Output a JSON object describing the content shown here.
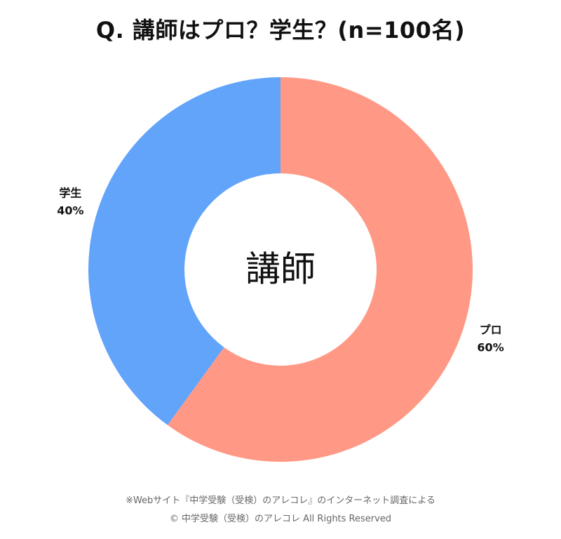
{
  "chart_data": {
    "type": "pie",
    "title": "Q. 講師はプロ？学生？(n=100名)",
    "center_text": "講師",
    "slices": [
      {
        "label": "プロ",
        "value": 60,
        "display": "60%",
        "color": "#FF9985"
      },
      {
        "label": "学生",
        "value": 40,
        "display": "40%",
        "color": "#62A4FA"
      }
    ]
  },
  "footer": {
    "note": "※Webサイト『中学受験（受検）のアレコレ』のインターネット調査による",
    "copyright": "© 中学受験（受検）のアレコレ All Rights Reserved"
  }
}
